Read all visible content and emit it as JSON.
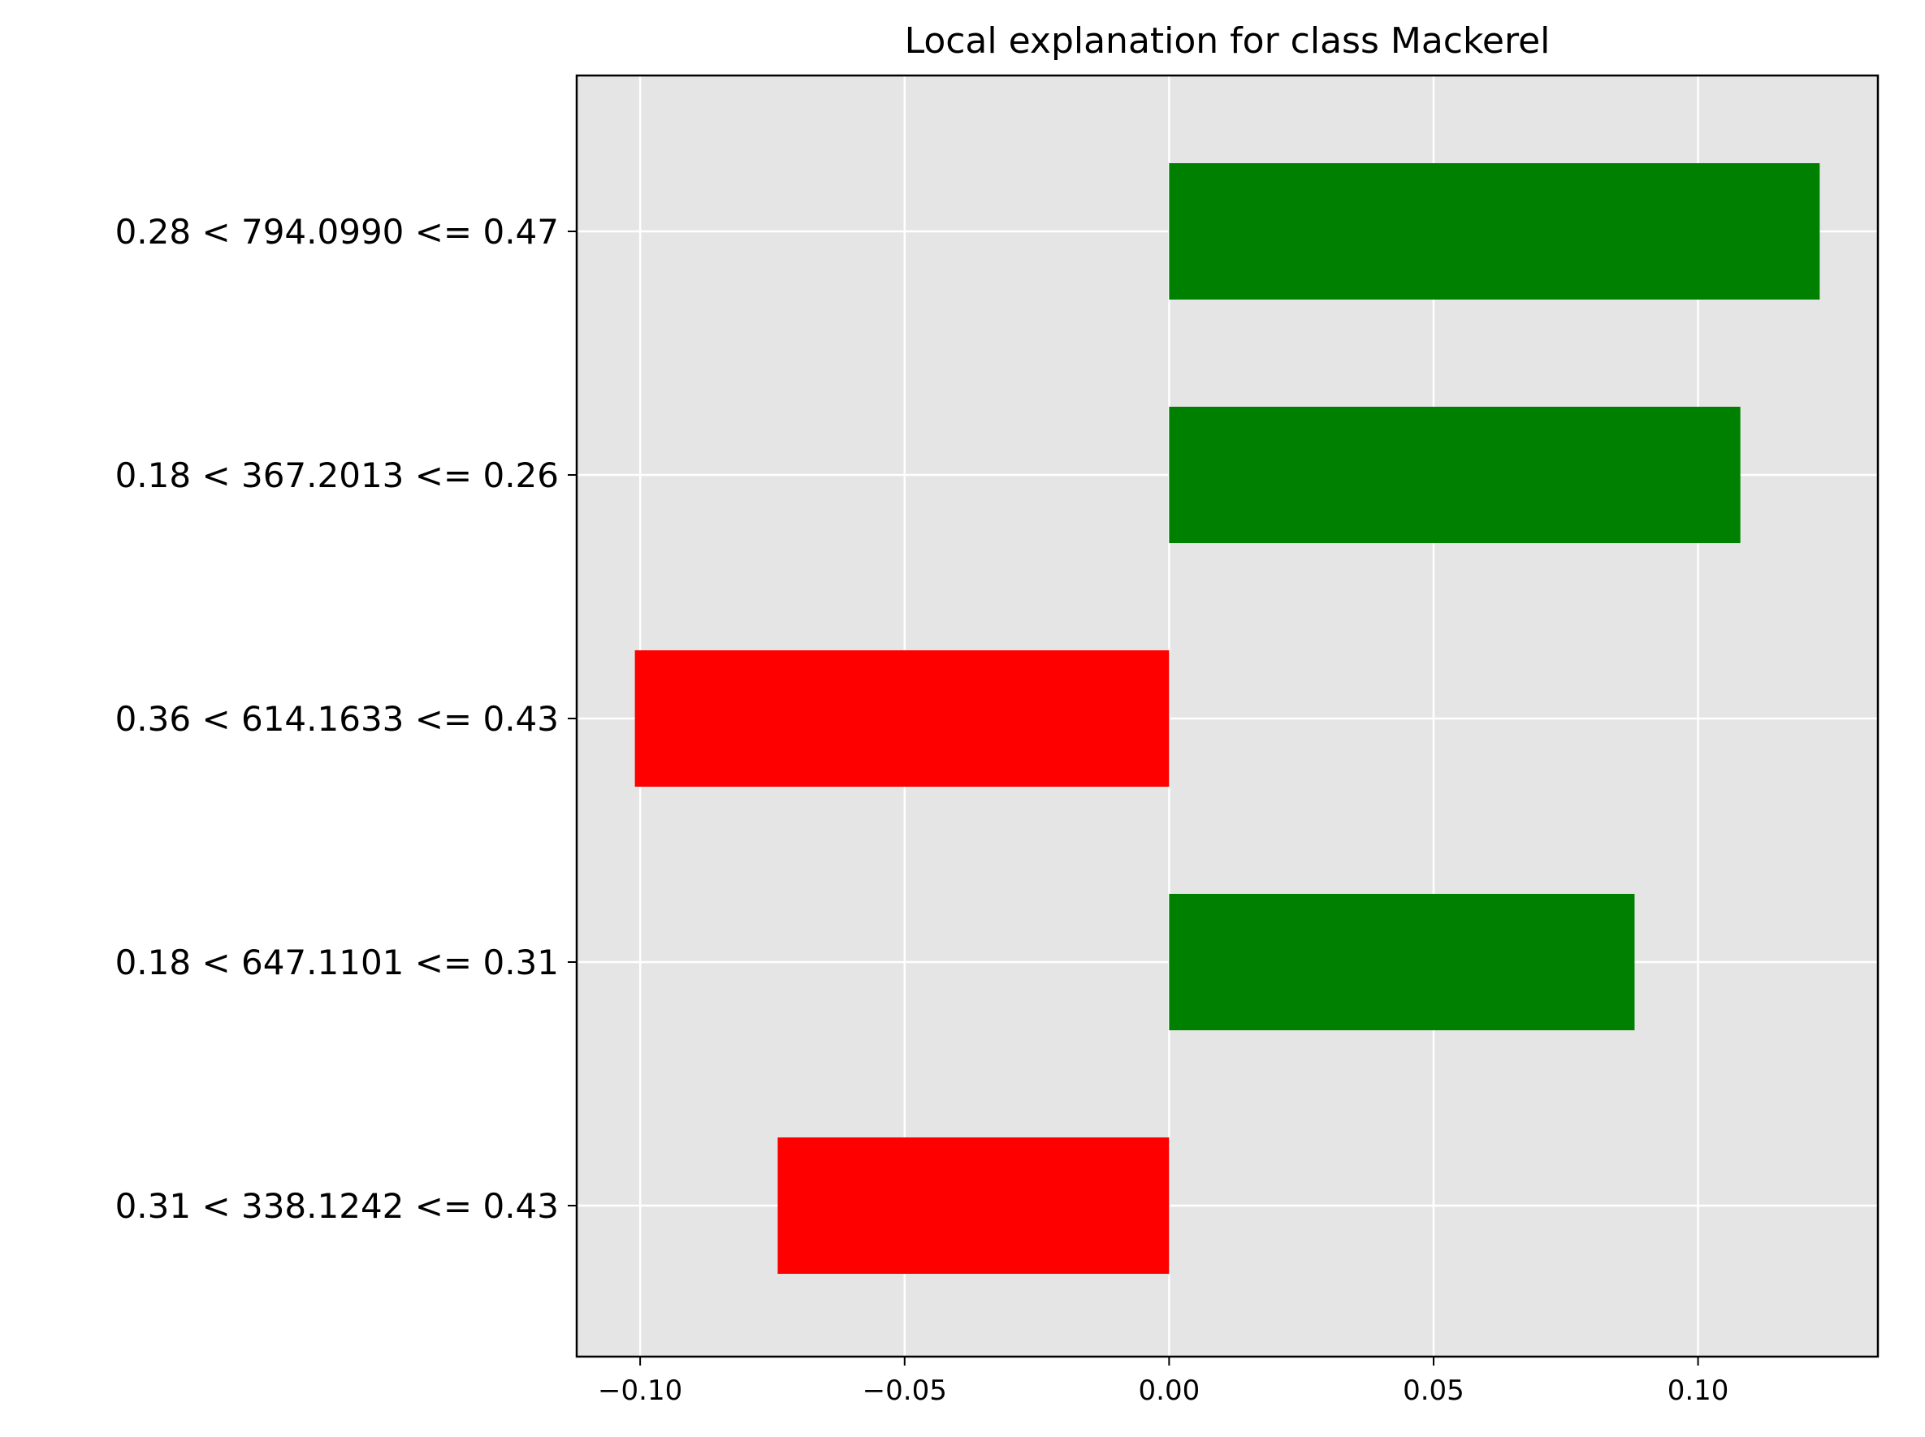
{
  "chart_data": {
    "type": "bar",
    "orientation": "horizontal",
    "title": "Local explanation for class Mackerel",
    "xlabel": "",
    "ylabel": "",
    "categories": [
      "0.28 < 794.0990 <= 0.47",
      "0.18 < 367.2013 <= 0.26",
      "0.36 < 614.1633 <= 0.43",
      "0.18 < 647.1101 <= 0.31",
      "0.31 < 338.1242 <= 0.43"
    ],
    "values": [
      0.123,
      0.108,
      -0.101,
      0.088,
      -0.074
    ],
    "xlim": [
      -0.112,
      0.134
    ],
    "xticks": [
      -0.1,
      -0.05,
      0.0,
      0.05,
      0.1
    ],
    "xtick_labels": [
      "−0.10",
      "−0.05",
      "0.00",
      "0.05",
      "0.10"
    ],
    "grid": true,
    "colors": {
      "positive": "#008000",
      "negative": "#ff0000",
      "plot_background": "#e5e5e5",
      "grid": "#ffffff"
    }
  }
}
